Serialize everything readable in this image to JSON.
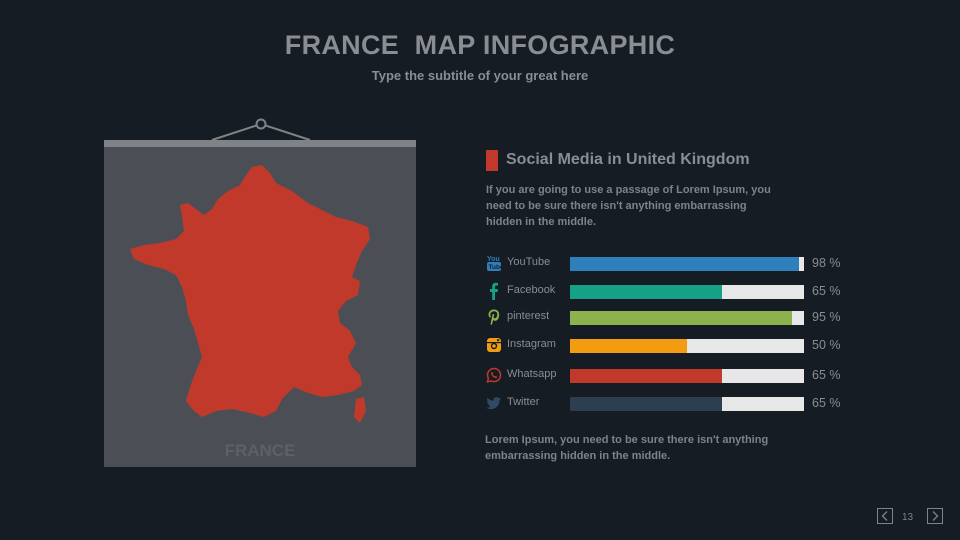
{
  "header": {
    "title": "FRANCE  MAP INFOGRAPHIC",
    "subtitle": "Type the subtitle of your great here"
  },
  "map": {
    "label": "FRANCE",
    "fill_color": "#c0392b",
    "board_color": "#4b4f55"
  },
  "section": {
    "title": "Social Media in United Kingdom",
    "description": "If you are going to use a passage of Lorem Ipsum, you need to be sure there isn't anything embarrassing hidden in the middle.",
    "accent_color": "#c0392b"
  },
  "stats": [
    {
      "label": "YouTube",
      "value": 98,
      "value_text": "98 %",
      "color": "#2f7fbd",
      "icon": "youtube-icon"
    },
    {
      "label": "Facebook",
      "value": 65,
      "value_text": "65 %",
      "color": "#16a085",
      "icon": "facebook-icon"
    },
    {
      "label": "pinterest",
      "value": 95,
      "value_text": "95 %",
      "color": "#8bb24c",
      "icon": "pinterest-icon"
    },
    {
      "label": "Instagram",
      "value": 50,
      "value_text": "50 %",
      "color": "#f39c12",
      "icon": "instagram-icon"
    },
    {
      "label": "Whatsapp",
      "value": 65,
      "value_text": "65 %",
      "color": "#c0392b",
      "icon": "whatsapp-icon"
    },
    {
      "label": "Twitter",
      "value": 65,
      "value_text": "65 %",
      "color": "#2c3e50",
      "icon": "twitter-icon"
    }
  ],
  "footer_text": "Lorem Ipsum, you need to be sure there isn't anything embarrassing hidden in the middle.",
  "pagination": {
    "page": "13"
  }
}
